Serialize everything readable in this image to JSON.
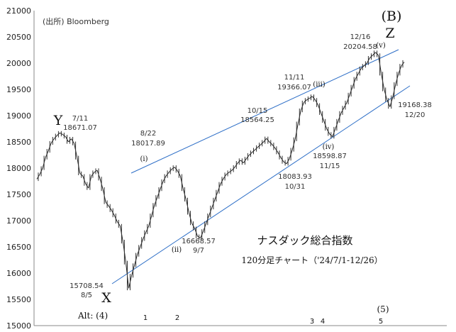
{
  "chart_data": {
    "type": "line",
    "title": "ナスダック総合指数",
    "subtitle": "120分足チャート（'24/7/1-12/26）",
    "source": "(出所) Bloomberg",
    "xlabel": "",
    "ylabel": "",
    "ylim": [
      15000,
      21000
    ],
    "yticks": [
      "21000",
      "20500",
      "20000",
      "19500",
      "19000",
      "18500",
      "18000",
      "17500",
      "17000",
      "16500",
      "16000",
      "15500",
      "15000"
    ],
    "grid": false,
    "series": [
      {
        "values": [
          17790,
          17880,
          18000,
          18200,
          18330,
          18480,
          18560,
          18620,
          18671,
          18640,
          18600,
          18500,
          18560,
          18470,
          18200,
          17900,
          17850,
          17700,
          17620,
          17850,
          17920,
          17960,
          17800,
          17600,
          17350,
          17280,
          17200,
          17100,
          16980,
          16900,
          16600,
          16200,
          15709,
          15950,
          16150,
          16350,
          16500,
          16650,
          16780,
          16900,
          17100,
          17300,
          17450,
          17600,
          17750,
          17850,
          17920,
          17980,
          18018,
          17950,
          17850,
          17600,
          17400,
          17150,
          16950,
          16850,
          16700,
          16669,
          16800,
          16950,
          17100,
          17250,
          17400,
          17550,
          17700,
          17800,
          17880,
          17920,
          17960,
          18020,
          18100,
          18150,
          18100,
          18180,
          18250,
          18300,
          18350,
          18400,
          18450,
          18500,
          18565,
          18500,
          18450,
          18380,
          18300,
          18200,
          18120,
          18084,
          18180,
          18350,
          18550,
          18850,
          19100,
          19250,
          19300,
          19330,
          19366,
          19300,
          19200,
          19050,
          18900,
          18750,
          18650,
          18599,
          18750,
          18900,
          19050,
          19150,
          19250,
          19400,
          19550,
          19700,
          19800,
          19900,
          19950,
          20000,
          20100,
          20150,
          20204,
          20150,
          19800,
          19500,
          19300,
          19168,
          19350,
          19600,
          19800,
          19950,
          20020
        ]
      }
    ],
    "annotations": [
      {
        "date": "7/11",
        "value": "18671.07",
        "wave": "Y"
      },
      {
        "date": "8/5",
        "value": "15708.54",
        "wave": "X"
      },
      {
        "date": "8/22",
        "value": "18017.89",
        "wave": "(i)"
      },
      {
        "date": "9/7",
        "value": "16668.57",
        "wave": "(ii)"
      },
      {
        "date": "10/15",
        "value": "18564.25"
      },
      {
        "date": "10/31",
        "value": "18083.93"
      },
      {
        "date": "11/11",
        "value": "19366.07",
        "wave": "(iii)"
      },
      {
        "date": "11/15",
        "value": "18598.87",
        "wave": "(iv)"
      },
      {
        "date": "12/16",
        "value": "20204.58",
        "wave": "(v)"
      },
      {
        "date": "12/20",
        "value": "19168.38"
      }
    ],
    "wave_labels": {
      "top": "(B)",
      "z": "Z"
    },
    "alt_labels": [
      "Alt: (4)",
      "1",
      "2",
      "3",
      "4",
      "5",
      "(5)"
    ]
  }
}
